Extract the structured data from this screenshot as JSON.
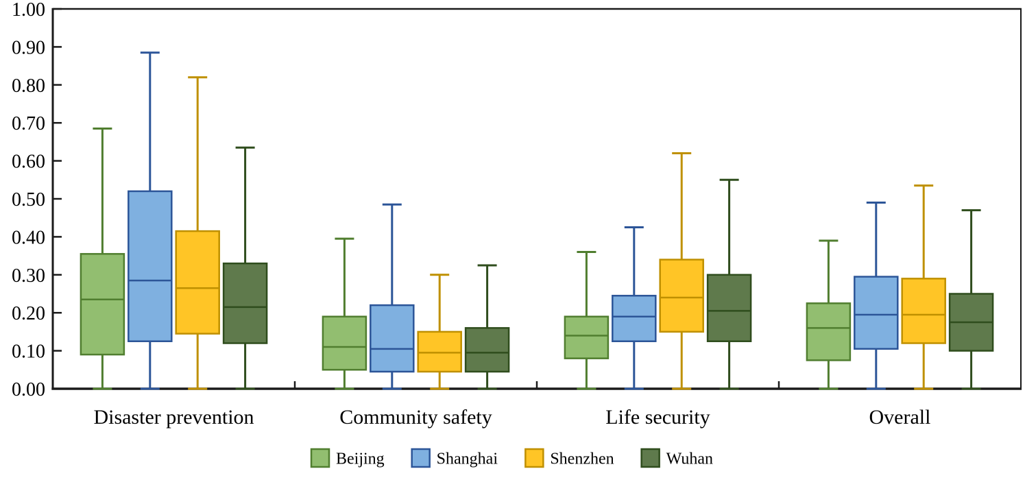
{
  "chart_data": {
    "type": "boxplot",
    "title": "",
    "xlabel": "",
    "ylabel": "",
    "ylim": [
      0.0,
      1.0
    ],
    "ytick_step": 0.1,
    "ytick_labels": [
      "0.00",
      "0.10",
      "0.20",
      "0.30",
      "0.40",
      "0.50",
      "0.60",
      "0.70",
      "0.80",
      "0.90",
      "1.00"
    ],
    "grid": false,
    "plot_border": true,
    "legend": {
      "position": "bottom-center",
      "labels": [
        "Beijing",
        "Shanghai",
        "Shenzhen",
        "Wuhan"
      ]
    },
    "categories": [
      "Disaster prevention",
      "Community safety",
      "Life security",
      "Overall"
    ],
    "series": [
      {
        "name": "Beijing",
        "fill": "#92BE70",
        "stroke": "#507E2F",
        "boxes": [
          {
            "lo": 0.0,
            "q1": 0.09,
            "med": 0.235,
            "q3": 0.355,
            "hi": 0.685
          },
          {
            "lo": 0.0,
            "q1": 0.05,
            "med": 0.11,
            "q3": 0.19,
            "hi": 0.395
          },
          {
            "lo": 0.0,
            "q1": 0.08,
            "med": 0.14,
            "q3": 0.19,
            "hi": 0.36
          },
          {
            "lo": 0.0,
            "q1": 0.075,
            "med": 0.16,
            "q3": 0.225,
            "hi": 0.39
          }
        ]
      },
      {
        "name": "Shanghai",
        "fill": "#7FB0E0",
        "stroke": "#2C5598",
        "boxes": [
          {
            "lo": 0.0,
            "q1": 0.125,
            "med": 0.285,
            "q3": 0.52,
            "hi": 0.885
          },
          {
            "lo": 0.0,
            "q1": 0.045,
            "med": 0.105,
            "q3": 0.22,
            "hi": 0.485
          },
          {
            "lo": 0.0,
            "q1": 0.125,
            "med": 0.19,
            "q3": 0.245,
            "hi": 0.425
          },
          {
            "lo": 0.0,
            "q1": 0.105,
            "med": 0.195,
            "q3": 0.295,
            "hi": 0.49
          }
        ]
      },
      {
        "name": "Shenzhen",
        "fill": "#FFC526",
        "stroke": "#BF9000",
        "boxes": [
          {
            "lo": 0.0,
            "q1": 0.145,
            "med": 0.265,
            "q3": 0.415,
            "hi": 0.82
          },
          {
            "lo": 0.0,
            "q1": 0.045,
            "med": 0.095,
            "q3": 0.15,
            "hi": 0.3
          },
          {
            "lo": 0.0,
            "q1": 0.15,
            "med": 0.24,
            "q3": 0.34,
            "hi": 0.62
          },
          {
            "lo": 0.0,
            "q1": 0.12,
            "med": 0.195,
            "q3": 0.29,
            "hi": 0.535
          }
        ]
      },
      {
        "name": "Wuhan",
        "fill": "#5F7A4C",
        "stroke": "#2F4D1D",
        "boxes": [
          {
            "lo": 0.0,
            "q1": 0.12,
            "med": 0.215,
            "q3": 0.33,
            "hi": 0.635
          },
          {
            "lo": 0.0,
            "q1": 0.045,
            "med": 0.095,
            "q3": 0.16,
            "hi": 0.325
          },
          {
            "lo": 0.0,
            "q1": 0.125,
            "med": 0.205,
            "q3": 0.3,
            "hi": 0.55
          },
          {
            "lo": 0.0,
            "q1": 0.1,
            "med": 0.175,
            "q3": 0.25,
            "hi": 0.47
          }
        ]
      }
    ],
    "axis_color": "#1a1a1a"
  }
}
